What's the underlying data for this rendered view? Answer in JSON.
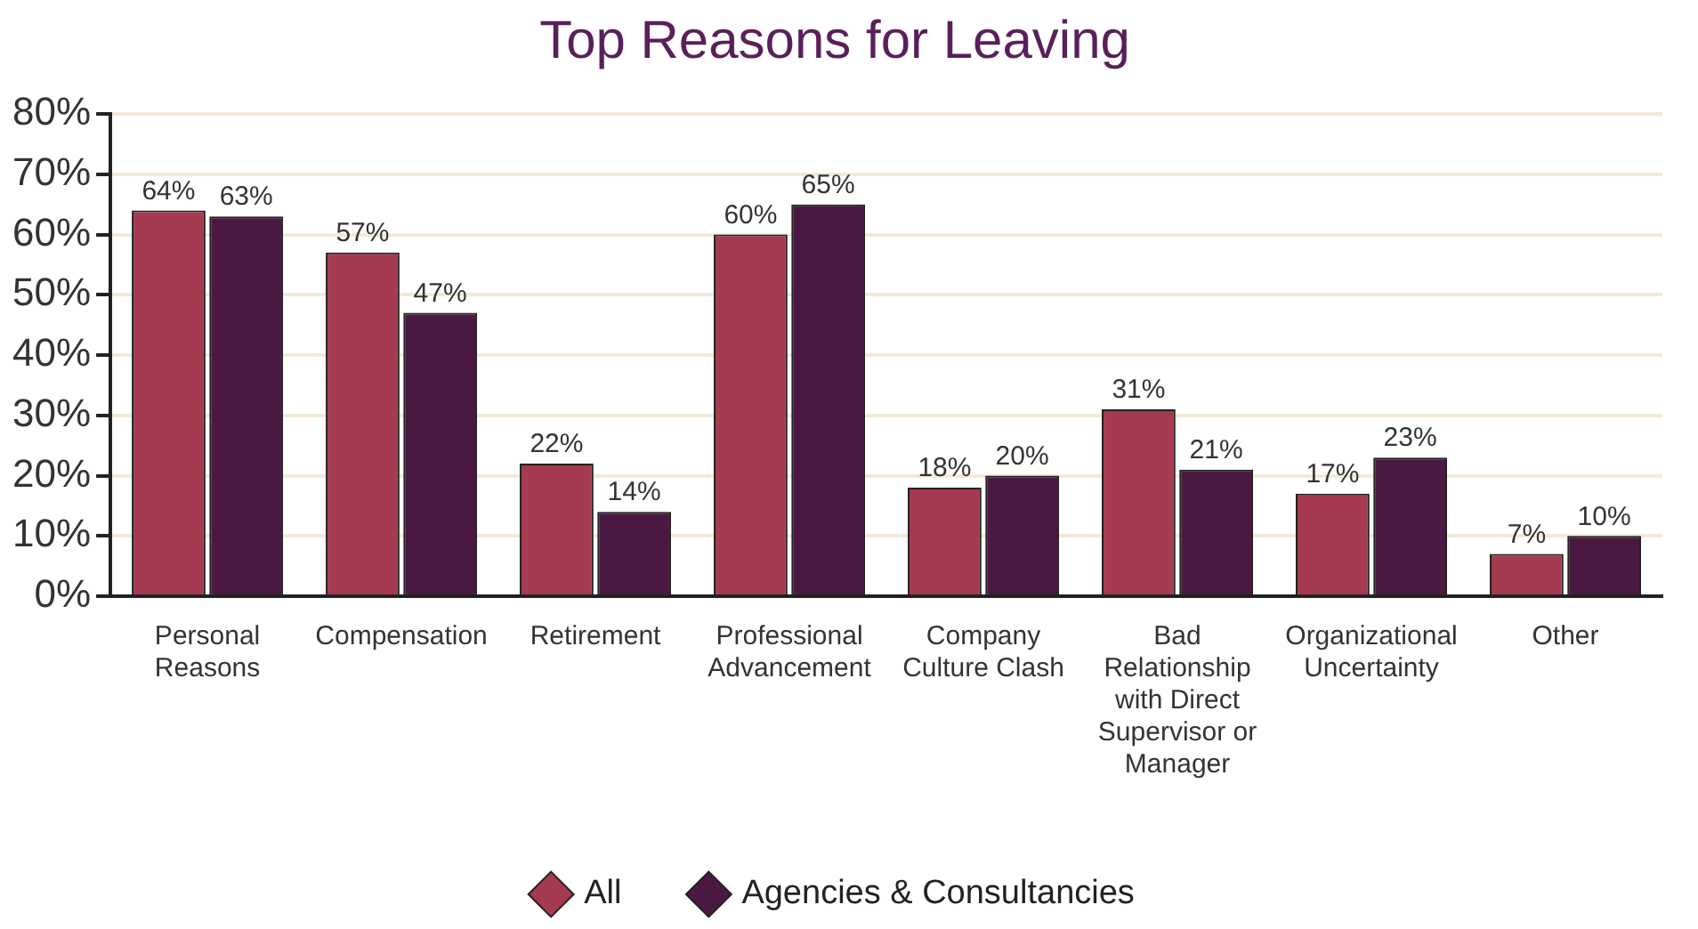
{
  "chart_data": {
    "type": "bar",
    "title": "Top Reasons for Leaving",
    "categories": [
      "Personal Reasons",
      "Compensation",
      "Retirement",
      "Professional Advancement",
      "Company Culture Clash",
      "Bad Relationship with Direct Supervisor or Manager",
      "Organizational Uncertainty",
      "Other"
    ],
    "series": [
      {
        "name": "All",
        "color": "#a63a50",
        "values": [
          64,
          57,
          22,
          60,
          18,
          31,
          17,
          7
        ]
      },
      {
        "name": "Agencies & Consultancies",
        "color": "#4a1942",
        "values": [
          63,
          47,
          14,
          65,
          20,
          21,
          23,
          10
        ]
      }
    ],
    "value_labels": [
      [
        "64%",
        "57%",
        "22%",
        "60%",
        "18%",
        "31%",
        "17%",
        "7%"
      ],
      [
        "63%",
        "47%",
        "14%",
        "65%",
        "20%",
        "21%",
        "23%",
        "10%"
      ]
    ],
    "ylim": [
      0,
      80
    ],
    "yticks": [
      {
        "value": 0,
        "label": "0%"
      },
      {
        "value": 10,
        "label": "10%"
      },
      {
        "value": 20,
        "label": "20%"
      },
      {
        "value": 30,
        "label": "30%"
      },
      {
        "value": 40,
        "label": "40%"
      },
      {
        "value": 50,
        "label": "50%"
      },
      {
        "value": 60,
        "label": "60%"
      },
      {
        "value": 70,
        "label": "70%"
      },
      {
        "value": 80,
        "label": "80%"
      }
    ],
    "grid": "y",
    "legend": "bottom"
  }
}
